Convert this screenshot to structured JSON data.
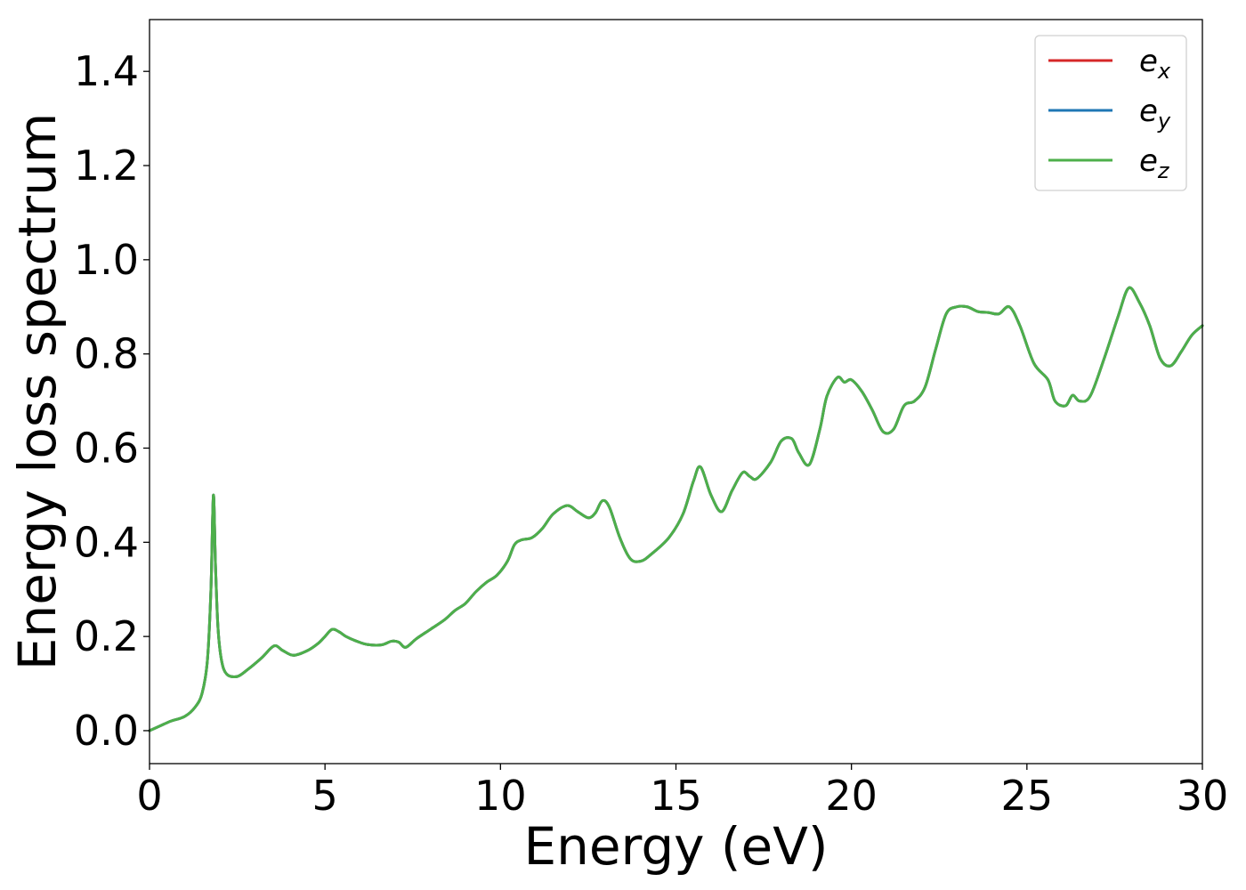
{
  "chart_data": {
    "type": "line",
    "xlabel": "Energy (eV)",
    "ylabel": "Energy loss spectrum",
    "xlim": [
      0,
      30
    ],
    "ylim": [
      -0.07,
      1.51
    ],
    "xticks": [
      "0",
      "5",
      "10",
      "15",
      "20",
      "25",
      "30"
    ],
    "yticks": [
      "0.0",
      "0.2",
      "0.4",
      "0.6",
      "0.8",
      "1.0",
      "1.2",
      "1.4"
    ],
    "grid": false,
    "legend_position": "top-right",
    "x": [
      0,
      0.3,
      0.6,
      1.0,
      1.3,
      1.5,
      1.65,
      1.75,
      1.82,
      1.88,
      1.95,
      2.05,
      2.2,
      2.5,
      2.8,
      3.2,
      3.55,
      3.8,
      4.1,
      4.5,
      4.8,
      5.0,
      5.2,
      5.4,
      5.6,
      5.9,
      6.2,
      6.6,
      6.9,
      7.1,
      7.3,
      7.6,
      8.0,
      8.4,
      8.7,
      9.0,
      9.3,
      9.6,
      9.9,
      10.2,
      10.4,
      10.6,
      10.9,
      11.2,
      11.5,
      11.9,
      12.2,
      12.5,
      12.7,
      12.9,
      13.1,
      13.4,
      13.7,
      14.0,
      14.3,
      14.8,
      15.2,
      15.5,
      15.7,
      16.0,
      16.3,
      16.6,
      16.9,
      17.1,
      17.3,
      17.7,
      18.0,
      18.3,
      18.5,
      18.8,
      19.1,
      19.3,
      19.6,
      19.8,
      20.0,
      20.3,
      20.6,
      20.9,
      21.2,
      21.5,
      21.8,
      22.1,
      22.4,
      22.7,
      23.0,
      23.3,
      23.6,
      23.9,
      24.2,
      24.5,
      24.8,
      25.2,
      25.6,
      25.8,
      26.1,
      26.3,
      26.5,
      26.8,
      27.2,
      27.6,
      27.9,
      28.2,
      28.5,
      28.8,
      29.1,
      29.4,
      29.7,
      30.0
    ],
    "series": [
      {
        "name": "e_x",
        "color": "#d62728",
        "y": [
          0.0,
          0.01,
          0.02,
          0.03,
          0.05,
          0.08,
          0.15,
          0.3,
          0.5,
          0.35,
          0.22,
          0.15,
          0.12,
          0.115,
          0.13,
          0.155,
          0.18,
          0.17,
          0.16,
          0.17,
          0.185,
          0.2,
          0.215,
          0.21,
          0.2,
          0.19,
          0.183,
          0.182,
          0.19,
          0.188,
          0.177,
          0.195,
          0.215,
          0.235,
          0.255,
          0.27,
          0.295,
          0.315,
          0.33,
          0.36,
          0.395,
          0.405,
          0.41,
          0.43,
          0.46,
          0.478,
          0.465,
          0.452,
          0.462,
          0.488,
          0.475,
          0.41,
          0.365,
          0.36,
          0.375,
          0.41,
          0.46,
          0.53,
          0.56,
          0.5,
          0.465,
          0.51,
          0.548,
          0.54,
          0.535,
          0.57,
          0.615,
          0.62,
          0.59,
          0.565,
          0.64,
          0.71,
          0.75,
          0.74,
          0.745,
          0.72,
          0.68,
          0.635,
          0.64,
          0.69,
          0.7,
          0.73,
          0.81,
          0.885,
          0.9,
          0.9,
          0.89,
          0.888,
          0.885,
          0.9,
          0.86,
          0.78,
          0.745,
          0.7,
          0.69,
          0.712,
          0.7,
          0.71,
          0.79,
          0.88,
          0.94,
          0.91,
          0.86,
          0.79,
          0.775,
          0.805,
          0.84,
          0.86
        ]
      },
      {
        "name": "e_y",
        "color": "#1f77b4",
        "y": [
          0.0,
          0.01,
          0.02,
          0.03,
          0.05,
          0.08,
          0.15,
          0.3,
          0.5,
          0.35,
          0.22,
          0.15,
          0.12,
          0.115,
          0.13,
          0.155,
          0.18,
          0.17,
          0.16,
          0.17,
          0.185,
          0.2,
          0.215,
          0.21,
          0.2,
          0.19,
          0.183,
          0.182,
          0.19,
          0.188,
          0.177,
          0.195,
          0.215,
          0.235,
          0.255,
          0.27,
          0.295,
          0.315,
          0.33,
          0.36,
          0.395,
          0.405,
          0.41,
          0.43,
          0.46,
          0.478,
          0.465,
          0.452,
          0.462,
          0.488,
          0.475,
          0.41,
          0.365,
          0.36,
          0.375,
          0.41,
          0.46,
          0.53,
          0.56,
          0.5,
          0.465,
          0.51,
          0.548,
          0.54,
          0.535,
          0.57,
          0.615,
          0.62,
          0.59,
          0.565,
          0.64,
          0.71,
          0.75,
          0.74,
          0.745,
          0.72,
          0.68,
          0.635,
          0.64,
          0.69,
          0.7,
          0.73,
          0.81,
          0.885,
          0.9,
          0.9,
          0.89,
          0.888,
          0.885,
          0.9,
          0.86,
          0.78,
          0.745,
          0.7,
          0.69,
          0.712,
          0.7,
          0.71,
          0.79,
          0.88,
          0.94,
          0.91,
          0.86,
          0.79,
          0.775,
          0.805,
          0.84,
          0.86
        ]
      },
      {
        "name": "e_z",
        "color": "#4daf4a",
        "y": [
          0.0,
          0.01,
          0.02,
          0.03,
          0.05,
          0.08,
          0.15,
          0.3,
          0.5,
          0.35,
          0.22,
          0.15,
          0.12,
          0.115,
          0.13,
          0.155,
          0.18,
          0.17,
          0.16,
          0.17,
          0.185,
          0.2,
          0.215,
          0.21,
          0.2,
          0.19,
          0.183,
          0.182,
          0.19,
          0.188,
          0.177,
          0.195,
          0.215,
          0.235,
          0.255,
          0.27,
          0.295,
          0.315,
          0.33,
          0.36,
          0.395,
          0.405,
          0.41,
          0.43,
          0.46,
          0.478,
          0.465,
          0.452,
          0.462,
          0.488,
          0.475,
          0.41,
          0.365,
          0.36,
          0.375,
          0.41,
          0.46,
          0.53,
          0.56,
          0.5,
          0.465,
          0.51,
          0.548,
          0.54,
          0.535,
          0.57,
          0.615,
          0.62,
          0.59,
          0.565,
          0.64,
          0.71,
          0.75,
          0.74,
          0.745,
          0.72,
          0.68,
          0.635,
          0.64,
          0.69,
          0.7,
          0.73,
          0.81,
          0.885,
          0.9,
          0.9,
          0.89,
          0.888,
          0.885,
          0.9,
          0.86,
          0.78,
          0.745,
          0.7,
          0.69,
          0.712,
          0.7,
          0.71,
          0.79,
          0.88,
          0.94,
          0.91,
          0.86,
          0.79,
          0.775,
          0.805,
          0.84,
          0.86
        ]
      }
    ],
    "legend": [
      {
        "base": "e",
        "sub": "x",
        "color": "#d62728"
      },
      {
        "base": "e",
        "sub": "y",
        "color": "#1f77b4"
      },
      {
        "base": "e",
        "sub": "z",
        "color": "#4daf4a"
      }
    ]
  }
}
